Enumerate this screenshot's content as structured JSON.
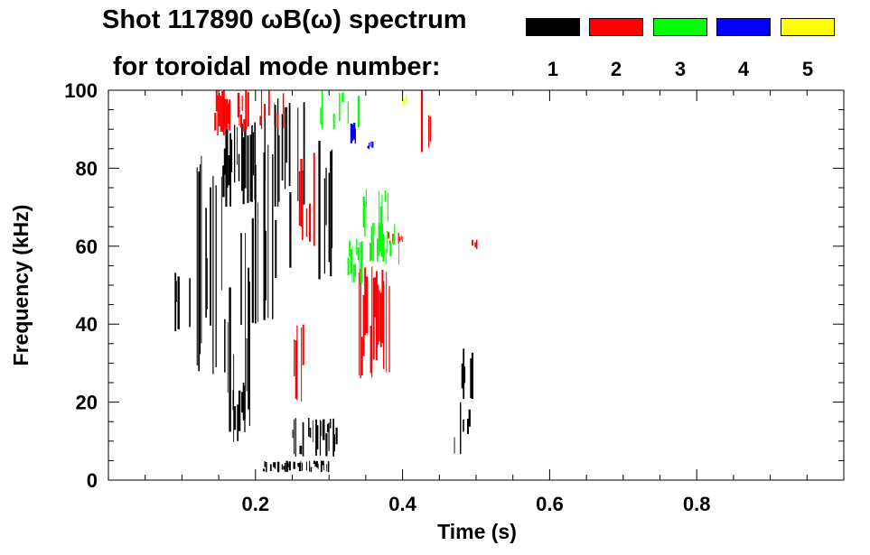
{
  "header": {
    "title_line1": "Shot 117890 ωB(ω) spectrum",
    "title_line2": "for toroidal mode number:"
  },
  "legend": [
    {
      "mode": "1",
      "color": "#000000"
    },
    {
      "mode": "2",
      "color": "#ff0000"
    },
    {
      "mode": "3",
      "color": "#00ff00"
    },
    {
      "mode": "4",
      "color": "#0000ff"
    },
    {
      "mode": "5",
      "color": "#ffff00"
    }
  ],
  "chart_data": {
    "type": "spectrogram",
    "title": "Shot 117890 ωB(ω) spectrum",
    "subtitle": "for toroidal mode number:",
    "xlabel": "Time (s)",
    "ylabel": "Frequency (kHz)",
    "xlim": [
      0.0,
      1.0
    ],
    "ylim": [
      0,
      100
    ],
    "x_ticks": [
      {
        "value": 0.2,
        "label": "0.2"
      },
      {
        "value": 0.4,
        "label": "0.4"
      },
      {
        "value": 0.6,
        "label": "0.6"
      },
      {
        "value": 0.8,
        "label": "0.8"
      }
    ],
    "y_ticks": [
      {
        "value": 0,
        "label": "0"
      },
      {
        "value": 20,
        "label": "20"
      },
      {
        "value": 40,
        "label": "40"
      },
      {
        "value": 60,
        "label": "60"
      },
      {
        "value": 80,
        "label": "80"
      },
      {
        "value": 100,
        "label": "100"
      }
    ],
    "x_minor_step": 0.05,
    "y_minor_step": 5,
    "regions": [
      {
        "mode": 1,
        "t": [
          0.09,
          0.11
        ],
        "f": [
          36,
          56
        ],
        "density": 0.5
      },
      {
        "mode": 1,
        "t": [
          0.12,
          0.16
        ],
        "f": [
          20,
          84
        ],
        "density": 0.45
      },
      {
        "mode": 1,
        "t": [
          0.155,
          0.2
        ],
        "f": [
          70,
          92
        ],
        "density": 0.8
      },
      {
        "mode": 1,
        "t": [
          0.16,
          0.2
        ],
        "f": [
          8,
          70
        ],
        "density": 0.35
      },
      {
        "mode": 1,
        "t": [
          0.165,
          0.185
        ],
        "f": [
          5,
          25
        ],
        "density": 0.6
      },
      {
        "mode": 1,
        "t": [
          0.195,
          0.25
        ],
        "f": [
          40,
          88
        ],
        "density": 0.3
      },
      {
        "mode": 1,
        "t": [
          0.21,
          0.27
        ],
        "f": [
          70,
          98
        ],
        "density": 0.4
      },
      {
        "mode": 1,
        "t": [
          0.26,
          0.32
        ],
        "f": [
          50,
          88
        ],
        "density": 0.25
      },
      {
        "mode": 1,
        "t": [
          0.25,
          0.31
        ],
        "f": [
          6,
          16
        ],
        "density": 0.6
      },
      {
        "mode": 1,
        "t": [
          0.21,
          0.3
        ],
        "f": [
          2,
          5
        ],
        "density": 0.6
      },
      {
        "mode": 1,
        "t": [
          0.47,
          0.49
        ],
        "f": [
          5,
          20
        ],
        "density": 0.5
      },
      {
        "mode": 1,
        "t": [
          0.48,
          0.495
        ],
        "f": [
          20,
          36
        ],
        "density": 0.5
      },
      {
        "mode": 2,
        "t": [
          0.14,
          0.19
        ],
        "f": [
          88,
          100
        ],
        "density": 0.6
      },
      {
        "mode": 2,
        "t": [
          0.18,
          0.24
        ],
        "f": [
          90,
          100
        ],
        "density": 0.3
      },
      {
        "mode": 2,
        "t": [
          0.255,
          0.28
        ],
        "f": [
          60,
          84
        ],
        "density": 0.5
      },
      {
        "mode": 2,
        "t": [
          0.25,
          0.27
        ],
        "f": [
          20,
          40
        ],
        "density": 0.4
      },
      {
        "mode": 2,
        "t": [
          0.34,
          0.385
        ],
        "f": [
          26,
          55
        ],
        "density": 0.9
      },
      {
        "mode": 2,
        "t": [
          0.38,
          0.4
        ],
        "f": [
          60,
          64
        ],
        "density": 0.6
      },
      {
        "mode": 2,
        "t": [
          0.425,
          0.44
        ],
        "f": [
          84,
          100
        ],
        "density": 0.4
      },
      {
        "mode": 2,
        "t": [
          0.49,
          0.5
        ],
        "f": [
          58,
          62
        ],
        "density": 0.4
      },
      {
        "mode": 3,
        "t": [
          0.325,
          0.345
        ],
        "f": [
          50,
          62
        ],
        "density": 0.8
      },
      {
        "mode": 3,
        "t": [
          0.355,
          0.395
        ],
        "f": [
          55,
          66
        ],
        "density": 0.5
      },
      {
        "mode": 3,
        "t": [
          0.28,
          0.34
        ],
        "f": [
          90,
          100
        ],
        "density": 0.25
      },
      {
        "mode": 3,
        "t": [
          0.34,
          0.38
        ],
        "f": [
          62,
          75
        ],
        "density": 0.3
      },
      {
        "mode": 4,
        "t": [
          0.325,
          0.335
        ],
        "f": [
          86,
          92
        ],
        "density": 0.8
      },
      {
        "mode": 4,
        "t": [
          0.352,
          0.358
        ],
        "f": [
          84,
          87
        ],
        "density": 0.6
      },
      {
        "mode": 5,
        "t": [
          0.39,
          0.41
        ],
        "f": [
          96,
          99
        ],
        "density": 0.5
      }
    ]
  }
}
